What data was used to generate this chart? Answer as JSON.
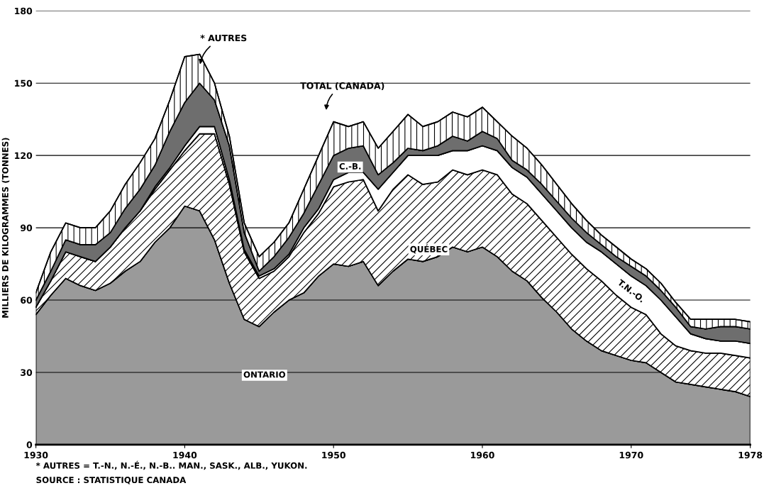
{
  "chart_data": {
    "type": "area",
    "stacked": true,
    "ylabel": "MILLIERS DE KILOGRAMMES (TONNES)",
    "x": [
      1930,
      1931,
      1932,
      1933,
      1934,
      1935,
      1936,
      1937,
      1938,
      1939,
      1940,
      1941,
      1942,
      1943,
      1944,
      1945,
      1946,
      1947,
      1948,
      1949,
      1950,
      1951,
      1952,
      1953,
      1954,
      1955,
      1956,
      1957,
      1958,
      1959,
      1960,
      1961,
      1962,
      1963,
      1964,
      1965,
      1966,
      1967,
      1968,
      1969,
      1970,
      1971,
      1972,
      1973,
      1974,
      1975,
      1976,
      1977,
      1978
    ],
    "series": [
      {
        "name": "ONTARIO",
        "color": "#9a9a9a",
        "values": [
          54,
          62,
          69,
          66,
          64,
          67,
          72,
          76,
          84,
          90,
          99,
          97,
          85,
          67,
          52,
          49,
          55,
          60,
          63,
          70,
          75,
          74,
          76,
          66,
          72,
          77,
          76,
          78,
          82,
          80,
          82,
          78,
          72,
          68,
          61,
          55,
          48,
          43,
          39,
          37,
          35,
          34,
          30,
          26,
          25,
          24,
          23,
          22,
          20
        ]
      },
      {
        "name": "QUÉBEC",
        "color": "#000000",
        "values": [
          3,
          6,
          11,
          12,
          12,
          15,
          18,
          21,
          22,
          24,
          23,
          32,
          44,
          41,
          28,
          20,
          17,
          18,
          25,
          26,
          32,
          35,
          34,
          31,
          34,
          35,
          32,
          31,
          32,
          32,
          32,
          34,
          32,
          32,
          32,
          31,
          31,
          30,
          29,
          25,
          22,
          20,
          16,
          15,
          14,
          14,
          15,
          15,
          16
        ]
      },
      {
        "name": "T.N.-O.",
        "color": "#ffffff",
        "values": [
          0,
          0,
          0,
          0,
          0,
          0,
          0,
          0,
          1,
          1,
          2,
          3,
          3,
          2,
          1,
          1,
          1,
          1,
          2,
          2,
          3,
          4,
          3,
          9,
          7,
          8,
          12,
          11,
          8,
          10,
          10,
          10,
          11,
          11,
          11,
          11,
          11,
          11,
          12,
          13,
          13,
          12,
          14,
          12,
          7,
          6,
          5,
          6,
          6
        ]
      },
      {
        "name": "C.-B.",
        "color": "#6e6e6e",
        "values": [
          3,
          4,
          5,
          5,
          7,
          6,
          8,
          9,
          9,
          15,
          18,
          18,
          11,
          14,
          7,
          2,
          5,
          7,
          6,
          10,
          10,
          10,
          11,
          6,
          4,
          3,
          2,
          4,
          6,
          4,
          6,
          5,
          3,
          3,
          4,
          4,
          4,
          4,
          3,
          3,
          4,
          4,
          4,
          4,
          3,
          4,
          6,
          6,
          6
        ]
      },
      {
        "name": "* AUTRES",
        "color": "#000000",
        "values": [
          3,
          8,
          7,
          7,
          7,
          9,
          10,
          11,
          11,
          13,
          19,
          12,
          7,
          4,
          4,
          6,
          6,
          6,
          10,
          12,
          14,
          9,
          10,
          11,
          13,
          14,
          10,
          10,
          10,
          10,
          10,
          7,
          10,
          9,
          8,
          7,
          6,
          5,
          4,
          4,
          3,
          3,
          3,
          2,
          3,
          4,
          3,
          3,
          3
        ]
      }
    ],
    "xlim": [
      1930,
      1978
    ],
    "ylim": [
      0,
      180
    ],
    "xticks": [
      1930,
      1940,
      1950,
      1960,
      1970,
      1978
    ],
    "yticks": [
      0,
      30,
      60,
      90,
      120,
      150,
      180
    ],
    "grid": "y",
    "legend": false,
    "annotations": [
      "TOTAL (CANADA)",
      "* AUTRES = T.-N., N.-É., N.-B.. MAN., SASK., ALB., YUKON.",
      "SOURCE : STATISTIQUE CANADA"
    ]
  }
}
